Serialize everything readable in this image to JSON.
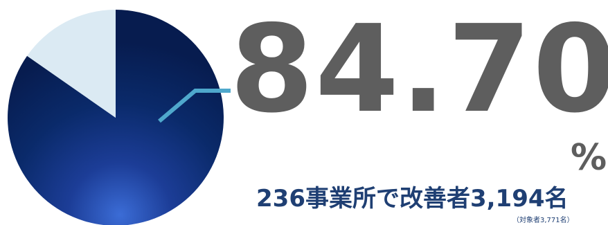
{
  "chart_data": {
    "type": "pie",
    "values": [
      84.7,
      15.3
    ],
    "value_label": "84.70",
    "unit": "%",
    "summary": "236事業所で改善者3,194名",
    "note": "（対象者3,771名）"
  },
  "colors": {
    "main_slice": "#0a2a6a",
    "rest_slice": "#dbeaf3",
    "leader_line": "#4fa8cc",
    "number_text": "#5e5e5e",
    "summary_text": "#1f3f73"
  }
}
